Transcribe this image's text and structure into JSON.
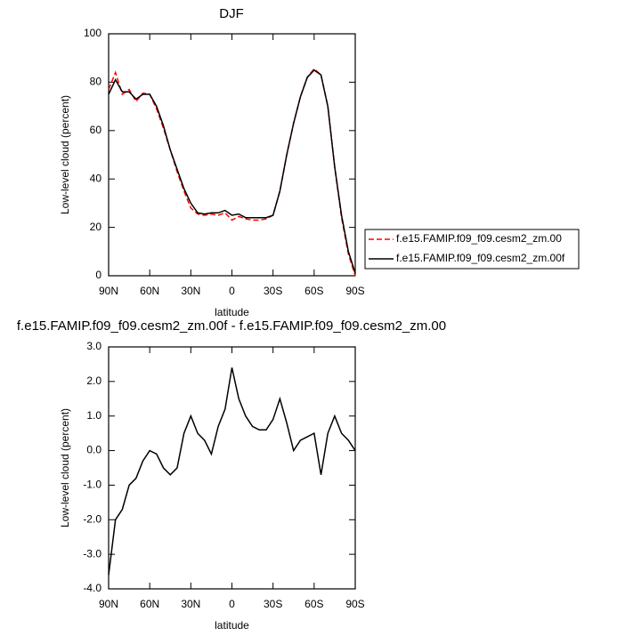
{
  "chart_data": [
    {
      "type": "line",
      "title": "DJF",
      "xlabel": "latitude",
      "ylabel": "Low-level cloud (percent)",
      "x": [
        90,
        85,
        80,
        75,
        70,
        65,
        60,
        55,
        50,
        45,
        40,
        35,
        30,
        25,
        20,
        15,
        10,
        5,
        0,
        -5,
        -10,
        -15,
        -20,
        -25,
        -30,
        -35,
        -40,
        -45,
        -50,
        -55,
        -60,
        -65,
        -70,
        -75,
        -80,
        -85,
        -90
      ],
      "series": [
        {
          "name": "f.e15.FAMIP.f09_f09.cesm2_zm.00",
          "color": "#ff0000",
          "line_style": "dashed",
          "values": [
            77,
            84,
            75,
            77,
            72,
            75.5,
            75,
            69,
            61,
            52,
            43,
            35,
            28,
            25.5,
            25,
            25.5,
            25,
            26,
            23,
            24.5,
            23.5,
            23,
            23,
            23.5,
            25,
            35,
            50,
            63,
            74,
            82,
            85.5,
            83,
            70,
            45,
            24,
            9,
            0
          ]
        },
        {
          "name": "f.e15.FAMIP.f09_f09.cesm2_zm.00f",
          "color": "#000000",
          "line_style": "solid",
          "values": [
            75,
            81,
            76,
            76,
            73,
            75,
            75,
            70,
            62,
            52,
            44,
            36,
            30,
            26,
            25.5,
            26,
            26,
            27,
            25,
            25.5,
            24,
            24,
            24,
            24,
            25,
            35,
            50,
            63,
            74,
            82,
            85,
            83,
            70,
            45,
            25,
            10,
            1
          ]
        }
      ],
      "xlim": [
        90,
        -90
      ],
      "xticks": [
        {
          "value": 90,
          "label": "90N"
        },
        {
          "value": 60,
          "label": "60N"
        },
        {
          "value": 30,
          "label": "30N"
        },
        0,
        {
          "value": -30,
          "label": "30S"
        },
        {
          "value": -60,
          "label": "60S"
        },
        {
          "value": -90,
          "label": "90S"
        }
      ],
      "ylim": [
        0,
        100
      ],
      "yticks": [
        0,
        20,
        40,
        60,
        80,
        100
      ],
      "legend": "right"
    },
    {
      "type": "line",
      "title": "f.e15.FAMIP.f09_f09.cesm2_zm.00f - f.e15.FAMIP.f09_f09.cesm2_zm.00",
      "xlabel": "latitude",
      "ylabel": "Low-level cloud (percent)",
      "x": [
        90,
        85,
        80,
        75,
        70,
        65,
        60,
        55,
        50,
        45,
        40,
        35,
        30,
        25,
        20,
        15,
        10,
        5,
        0,
        -5,
        -10,
        -15,
        -20,
        -25,
        -30,
        -35,
        -40,
        -45,
        -50,
        -55,
        -60,
        -65,
        -70,
        -75,
        -80,
        -85,
        -90
      ],
      "series": [
        {
          "color": "#000000",
          "line_style": "solid",
          "values": [
            -3.6,
            -2.0,
            -1.7,
            -1.0,
            -0.8,
            -0.3,
            0.0,
            -0.1,
            -0.5,
            -0.7,
            -0.5,
            0.5,
            1.0,
            0.5,
            0.3,
            -0.1,
            0.7,
            1.2,
            2.4,
            1.5,
            1.0,
            0.7,
            0.6,
            0.6,
            0.9,
            1.5,
            0.8,
            0.0,
            0.3,
            0.4,
            0.5,
            -0.7,
            0.5,
            1.0,
            0.5,
            0.3,
            0.0
          ]
        }
      ],
      "xlim": [
        90,
        -90
      ],
      "xticks": [
        {
          "value": 90,
          "label": "90N"
        },
        {
          "value": 60,
          "label": "60N"
        },
        {
          "value": 30,
          "label": "30N"
        },
        0,
        {
          "value": -30,
          "label": "30S"
        },
        {
          "value": -60,
          "label": "60S"
        },
        {
          "value": -90,
          "label": "90S"
        }
      ],
      "ylim": [
        -4,
        3
      ],
      "yticks": [
        {
          "value": -4,
          "label": "-4.0"
        },
        {
          "value": -3,
          "label": "-3.0"
        },
        {
          "value": -2,
          "label": "-2.0"
        },
        {
          "value": -1,
          "label": "-1.0"
        },
        {
          "value": 0,
          "label": "0.0"
        },
        {
          "value": 1,
          "label": "1.0"
        },
        {
          "value": 2,
          "label": "2.0"
        },
        {
          "value": 3,
          "label": "3.0"
        }
      ]
    }
  ]
}
